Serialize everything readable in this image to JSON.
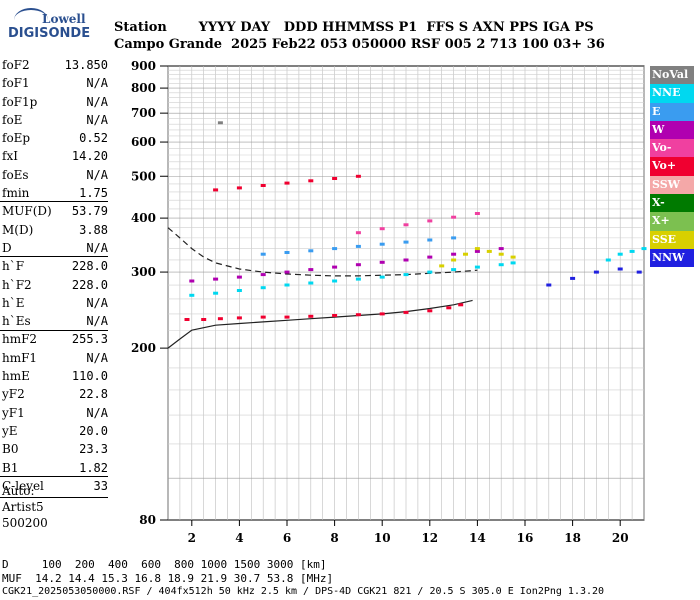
{
  "logo": {
    "line1": "Lowell",
    "line2": "DIGISONDE"
  },
  "header": {
    "row1": "Station       YYYY DAY   DDD HHMMSS P1  FFS S AXN PPS IGA PS",
    "row2": "Campo Grande  2025 Feb22 053 050000 RSF 005 2 713 100 03+ 36"
  },
  "params": [
    {
      "label": "foF2",
      "value": "13.850"
    },
    {
      "label": "foF1",
      "value": "N/A"
    },
    {
      "label": "foF1p",
      "value": "N/A"
    },
    {
      "label": "foE",
      "value": "N/A"
    },
    {
      "label": "foEp",
      "value": "0.52"
    },
    {
      "label": "fxI",
      "value": "14.20"
    },
    {
      "label": "foEs",
      "value": "N/A"
    },
    {
      "label": "fmin",
      "value": "1.75"
    },
    {
      "label": "MUF(D)",
      "value": "53.79"
    },
    {
      "label": "M(D)",
      "value": "3.88"
    },
    {
      "label": "D",
      "value": "N/A"
    },
    {
      "label": "h`F",
      "value": "228.0"
    },
    {
      "label": "h`F2",
      "value": "228.0"
    },
    {
      "label": "h`E",
      "value": "N/A"
    },
    {
      "label": "h`Es",
      "value": "N/A"
    },
    {
      "label": "hmF2",
      "value": "255.3"
    },
    {
      "label": "hmF1",
      "value": "N/A"
    },
    {
      "label": "hmE",
      "value": "110.0"
    },
    {
      "label": "yF2",
      "value": "22.8"
    },
    {
      "label": "yF1",
      "value": "N/A"
    },
    {
      "label": "yE",
      "value": "20.0"
    },
    {
      "label": "B0",
      "value": "23.3"
    },
    {
      "label": "B1",
      "value": "1.82"
    },
    {
      "label": "C-level",
      "value": "33"
    }
  ],
  "auto": {
    "line1": "Auto:",
    "line2": "Artist5",
    "line3": "500200"
  },
  "legend": [
    {
      "label": "NoVal",
      "color": "#808080"
    },
    {
      "label": "NNE",
      "color": "#00d8f0"
    },
    {
      "label": "E",
      "color": "#3a9cf0"
    },
    {
      "label": "W",
      "color": "#b000b0"
    },
    {
      "label": "Vo-",
      "color": "#f040a0"
    },
    {
      "label": "Vo+",
      "color": "#f00030"
    },
    {
      "label": "SSW",
      "color": "#f4a8a8"
    },
    {
      "label": "X-",
      "color": "#007a00"
    },
    {
      "label": "X+",
      "color": "#7cc050"
    },
    {
      "label": "SSE",
      "color": "#d8d000"
    },
    {
      "label": "NNW",
      "color": "#2020e0"
    }
  ],
  "footer": {
    "d_row": "D     100  200  400  600  800 1000 1500 3000 [km]",
    "muf_row": "MUF  14.2 14.4 15.3 16.8 18.9 21.9 30.7 53.8 [MHz]",
    "info": "CGK21_2025053050000.RSF / 404fx512h 50 kHz 2.5 km / DPS-4D CGK21 821 / 20.5 S 305.0 E Ion2Png 1.3.20"
  },
  "chart_data": {
    "type": "scatter",
    "xlim": [
      1.0,
      21.0
    ],
    "ylim": [
      80,
      900
    ],
    "y_scale": "log",
    "x_ticks": [
      2,
      4,
      6,
      8,
      10,
      12,
      14,
      16,
      18,
      20
    ],
    "y_ticks": [
      80,
      200,
      300,
      400,
      500,
      600,
      700,
      800,
      900
    ],
    "grid": true,
    "traces": [
      {
        "name": "Vo+",
        "color": "#f00030",
        "x": [
          1.8,
          2.5,
          3.2,
          4.0,
          5.0,
          6.0,
          7.0,
          8.0,
          9.0,
          10.0,
          11.0,
          12.0,
          12.8,
          13.3
        ],
        "y": [
          233,
          233,
          234,
          235,
          236,
          236,
          237,
          238,
          239,
          240,
          242,
          244,
          248,
          252
        ]
      },
      {
        "name": "NNE",
        "color": "#00d8f0",
        "x": [
          2.0,
          3.0,
          4.0,
          5.0,
          6.0,
          7.0,
          8.0,
          9.0,
          10.0,
          11.0,
          12.0,
          13.0,
          14.0,
          15.0,
          15.5
        ],
        "y": [
          265,
          268,
          272,
          276,
          280,
          283,
          286,
          289,
          292,
          296,
          300,
          304,
          308,
          312,
          315
        ]
      },
      {
        "name": "W",
        "color": "#b000b0",
        "x": [
          2.0,
          3.0,
          4.0,
          5.0,
          6.0,
          7.0,
          8.0,
          9.0,
          10.0,
          11.0,
          12.0,
          13.0,
          14.0,
          15.0
        ],
        "y": [
          286,
          289,
          292,
          296,
          300,
          304,
          308,
          312,
          316,
          320,
          325,
          330,
          335,
          340
        ]
      },
      {
        "name": "E",
        "color": "#3a9cf0",
        "x": [
          5.0,
          6.0,
          7.0,
          8.0,
          9.0,
          10.0,
          11.0,
          12.0,
          13.0
        ],
        "y": [
          330,
          333,
          336,
          340,
          344,
          348,
          352,
          356,
          360
        ]
      },
      {
        "name": "Vo-",
        "color": "#f040a0",
        "x": [
          9.0,
          10.0,
          11.0,
          12.0,
          13.0,
          14.0
        ],
        "y": [
          370,
          378,
          386,
          394,
          402,
          410
        ]
      },
      {
        "name": "Vo+",
        "color": "#f00030",
        "x": [
          3.0,
          4.0,
          5.0,
          6.0,
          7.0,
          8.0,
          9.0
        ],
        "y": [
          465,
          470,
          476,
          482,
          488,
          494,
          500
        ]
      },
      {
        "name": "SSE",
        "color": "#d8d000",
        "x": [
          12.5,
          13.0,
          13.5,
          14.0,
          14.5,
          15.0,
          15.5
        ],
        "y": [
          310,
          320,
          330,
          340,
          335,
          330,
          325
        ]
      },
      {
        "name": "NNW",
        "color": "#2020e0",
        "x": [
          17.0,
          18.0,
          19.0,
          20.0,
          20.8
        ],
        "y": [
          280,
          290,
          300,
          305,
          300
        ]
      },
      {
        "name": "NNE",
        "color": "#00d8f0",
        "x": [
          19.5,
          20.0,
          20.5,
          21.0
        ],
        "y": [
          320,
          330,
          335,
          340
        ]
      },
      {
        "name": "NoVal",
        "color": "#808080",
        "x": [
          3.2
        ],
        "y": [
          665
        ]
      }
    ],
    "profile_dashed": {
      "x": [
        1.0,
        1.5,
        2.0,
        2.5,
        3.0,
        4.0,
        5.0,
        6.0,
        7.0,
        8.0,
        9.0,
        10.0,
        11.0,
        12.0,
        13.0,
        14.0
      ],
      "y": [
        380,
        360,
        340,
        325,
        315,
        305,
        300,
        297,
        295,
        294,
        294,
        295,
        296,
        298,
        300,
        303
      ]
    },
    "profile_solid": {
      "x": [
        1.0,
        1.5,
        2.0,
        3.0,
        4.0,
        5.0,
        6.0,
        7.0,
        8.0,
        9.0,
        10.0,
        11.0,
        12.0,
        13.0,
        13.8
      ],
      "y": [
        200,
        210,
        220,
        226,
        228,
        230,
        232,
        234,
        236,
        238,
        240,
        243,
        247,
        252,
        258
      ]
    }
  }
}
